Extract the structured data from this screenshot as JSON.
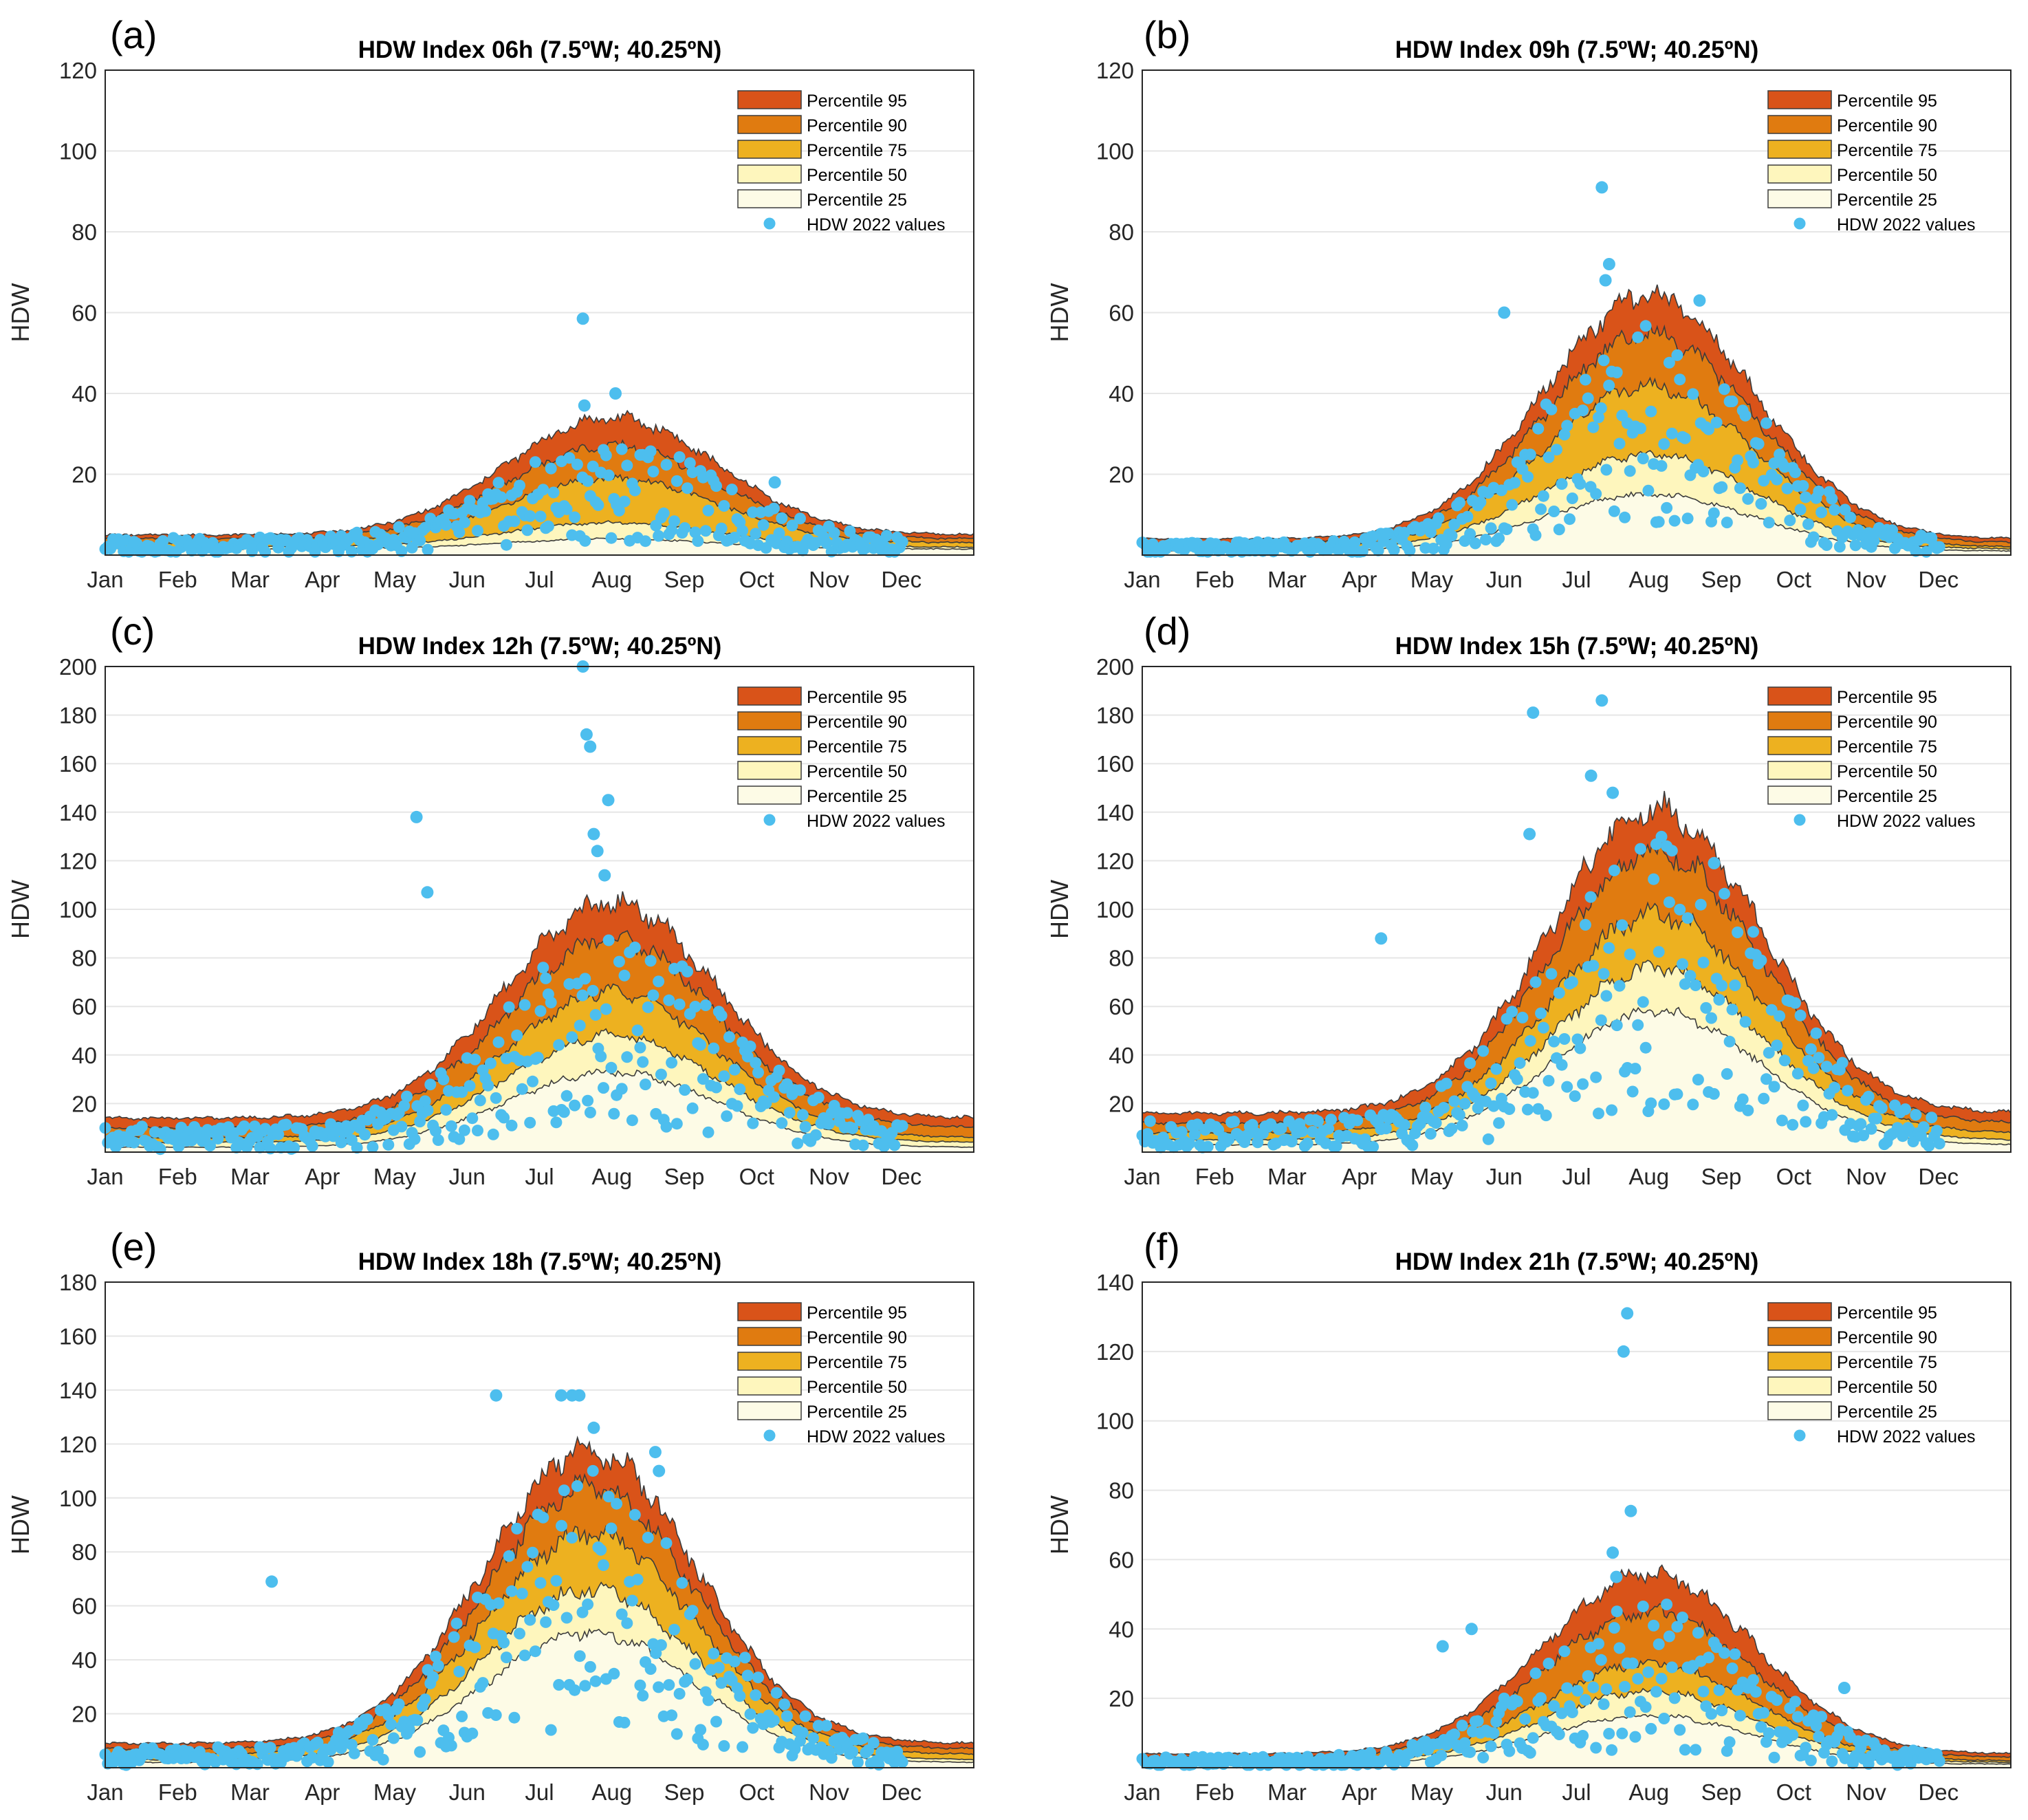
{
  "figure": {
    "months": [
      "Jan",
      "Feb",
      "Mar",
      "Apr",
      "May",
      "Jun",
      "Jul",
      "Aug",
      "Sep",
      "Oct",
      "Nov",
      "Dec"
    ],
    "ylabel": "HDW",
    "legend": [
      "Percentile 95",
      "Percentile 90",
      "Percentile 75",
      "Percentile 50",
      "Percentile 25",
      "HDW 2022 values"
    ],
    "colors": {
      "p95": "#d95319",
      "p90": "#e07b10",
      "p75": "#edb120",
      "p50": "#fef6bd",
      "p25": "#fdfbe6",
      "points": "#4dbeee",
      "outline": "#3c3c3c"
    }
  },
  "chart_data": [
    {
      "panel": "(a)",
      "title": "HDW Index 06h (7.5ºW; 40.25ºN)",
      "type": "area",
      "ylim": [
        0,
        120
      ],
      "yticks": [
        20,
        40,
        60,
        80,
        100,
        120
      ],
      "peak_month": 7.0,
      "percentiles": {
        "p25": {
          "base": 1.5,
          "peak": 4
        },
        "p50": {
          "base": 2,
          "peak": 8
        },
        "p75": {
          "base": 3,
          "peak": 19
        },
        "p90": {
          "base": 4,
          "peak": 27
        },
        "p95": {
          "base": 5,
          "peak": 34
        }
      },
      "highlights": [
        [
          6.6,
          58.5
        ],
        [
          6.62,
          37
        ],
        [
          7.05,
          40
        ],
        [
          9.25,
          18
        ]
      ]
    },
    {
      "panel": "(b)",
      "title": "HDW Index 09h (7.5ºW; 40.25ºN)",
      "type": "area",
      "ylim": [
        0,
        120
      ],
      "yticks": [
        20,
        40,
        60,
        80,
        100,
        120
      ],
      "peak_month": 7.0,
      "percentiles": {
        "p25": {
          "base": 1,
          "peak": 15
        },
        "p50": {
          "base": 1.5,
          "peak": 25
        },
        "p75": {
          "base": 2,
          "peak": 42
        },
        "p90": {
          "base": 3,
          "peak": 55
        },
        "p95": {
          "base": 4,
          "peak": 64
        }
      },
      "highlights": [
        [
          6.35,
          91
        ],
        [
          6.45,
          72
        ],
        [
          6.4,
          68
        ],
        [
          5.0,
          60
        ],
        [
          7.7,
          63
        ]
      ]
    },
    {
      "panel": "(c)",
      "title": "HDW Index 12h (7.5ºW; 40.25ºN)",
      "type": "area",
      "ylim": [
        0,
        200
      ],
      "yticks": [
        20,
        40,
        60,
        80,
        100,
        120,
        140,
        160,
        180,
        200
      ],
      "peak_month": 7.0,
      "percentiles": {
        "p25": {
          "base": 2,
          "peak": 33
        },
        "p50": {
          "base": 4,
          "peak": 48
        },
        "p75": {
          "base": 6,
          "peak": 66
        },
        "p90": {
          "base": 10,
          "peak": 88
        },
        "p95": {
          "base": 14,
          "peak": 103
        }
      },
      "highlights": [
        [
          6.6,
          200
        ],
        [
          6.65,
          172
        ],
        [
          6.7,
          167
        ],
        [
          6.95,
          145
        ],
        [
          6.75,
          131
        ],
        [
          4.3,
          138
        ],
        [
          6.8,
          124
        ],
        [
          6.9,
          114
        ],
        [
          4.45,
          107
        ]
      ]
    },
    {
      "panel": "(d)",
      "title": "HDW Index 15h (7.5ºW; 40.25ºN)",
      "type": "area",
      "ylim": [
        0,
        200
      ],
      "yticks": [
        20,
        40,
        60,
        80,
        100,
        120,
        140,
        160,
        180,
        200
      ],
      "peak_month": 7.1,
      "percentiles": {
        "p25": {
          "base": 3,
          "peak": 58
        },
        "p50": {
          "base": 5,
          "peak": 76
        },
        "p75": {
          "base": 8,
          "peak": 98
        },
        "p90": {
          "base": 12,
          "peak": 124
        },
        "p95": {
          "base": 16,
          "peak": 142
        }
      },
      "highlights": [
        [
          6.35,
          186
        ],
        [
          5.4,
          181
        ],
        [
          6.2,
          155
        ],
        [
          6.5,
          148
        ],
        [
          5.35,
          131
        ],
        [
          3.3,
          88
        ],
        [
          7.9,
          119
        ]
      ]
    },
    {
      "panel": "(e)",
      "title": "HDW Index 18h (7.5ºW; 40.25ºN)",
      "type": "area",
      "ylim": [
        0,
        180
      ],
      "yticks": [
        20,
        40,
        60,
        80,
        100,
        120,
        140,
        160,
        180
      ],
      "peak_month": 6.7,
      "percentiles": {
        "p25": {
          "base": 2,
          "peak": 50
        },
        "p50": {
          "base": 3,
          "peak": 66
        },
        "p75": {
          "base": 5,
          "peak": 87
        },
        "p90": {
          "base": 7,
          "peak": 104
        },
        "p95": {
          "base": 9,
          "peak": 118
        }
      },
      "highlights": [
        [
          5.4,
          138
        ],
        [
          6.3,
          138
        ],
        [
          6.55,
          138
        ],
        [
          6.45,
          138
        ],
        [
          6.75,
          126
        ],
        [
          2.3,
          69
        ],
        [
          7.6,
          117
        ],
        [
          7.65,
          110
        ]
      ]
    },
    {
      "panel": "(f)",
      "title": "HDW Index 21h (7.5ºW; 40.25ºN)",
      "type": "area",
      "ylim": [
        0,
        140
      ],
      "yticks": [
        20,
        40,
        60,
        80,
        100,
        120,
        140
      ],
      "peak_month": 7.0,
      "percentiles": {
        "p25": {
          "base": 1,
          "peak": 15
        },
        "p50": {
          "base": 1.5,
          "peak": 22
        },
        "p75": {
          "base": 2,
          "peak": 30
        },
        "p90": {
          "base": 3,
          "peak": 45
        },
        "p95": {
          "base": 4,
          "peak": 56
        }
      },
      "highlights": [
        [
          6.7,
          131
        ],
        [
          6.65,
          120
        ],
        [
          6.75,
          74
        ],
        [
          6.5,
          62
        ],
        [
          6.55,
          55
        ],
        [
          9.7,
          23
        ],
        [
          4.15,
          35
        ],
        [
          4.55,
          40
        ]
      ]
    }
  ]
}
